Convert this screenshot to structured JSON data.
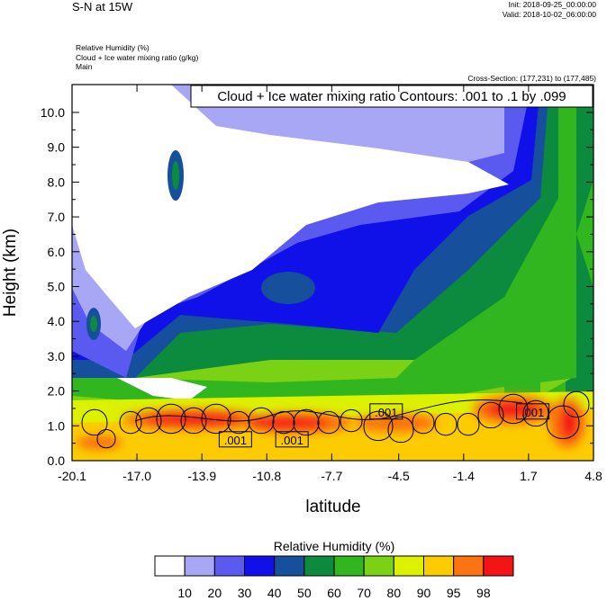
{
  "header": {
    "title": "S-N at 15W",
    "init": "Init: 2018-09-25_00:00:00",
    "valid": "Valid: 2018-10-02_06:00:00",
    "var1": "Relative Humidity   (%)",
    "var2": "Cloud + Ice water mixing ratio   (g/kg)",
    "var3": "Main",
    "cross_section": "Cross-Section: (177,231) to (177,485)"
  },
  "chart_data": {
    "type": "heatmap",
    "title": "Cloud + Ice water mixing ratio Contours: .001 to .1 by .099",
    "xlabel": "latitude",
    "ylabel": "Height (km)",
    "x_ticks": [
      "-20.1",
      "-17.0",
      "-13.9",
      "-10.8",
      "-7.7",
      "-4.5",
      "-1.4",
      "1.7",
      "4.8"
    ],
    "x_range": [
      -20.1,
      4.8
    ],
    "y_ticks": [
      "0.0",
      "1.0",
      "2.0",
      "3.0",
      "4.0",
      "5.0",
      "6.0",
      "7.0",
      "8.0",
      "9.0",
      "10.0"
    ],
    "y_range": [
      0,
      10.8
    ],
    "contour_labels": [
      {
        "text": ".001",
        "x": -12.3,
        "y": 0.6
      },
      {
        "text": ".001",
        "x": -9.6,
        "y": 0.6
      },
      {
        "text": ".001",
        "x": -5.1,
        "y": 1.4
      },
      {
        "text": ".001",
        "x": 1.9,
        "y": 1.4
      }
    ],
    "colorbar": {
      "title": "Relative Humidity  (%)",
      "levels": [
        "10",
        "20",
        "30",
        "40",
        "50",
        "60",
        "70",
        "80",
        "90",
        "95",
        "98"
      ],
      "colors": [
        "#ffffff",
        "#a7a7f6",
        "#5a5af0",
        "#1010e8",
        "#164f9b",
        "#0c8a3e",
        "#31b61f",
        "#7bd114",
        "#dcf100",
        "#fccc00",
        "#fb7411",
        "#f41414"
      ]
    }
  }
}
